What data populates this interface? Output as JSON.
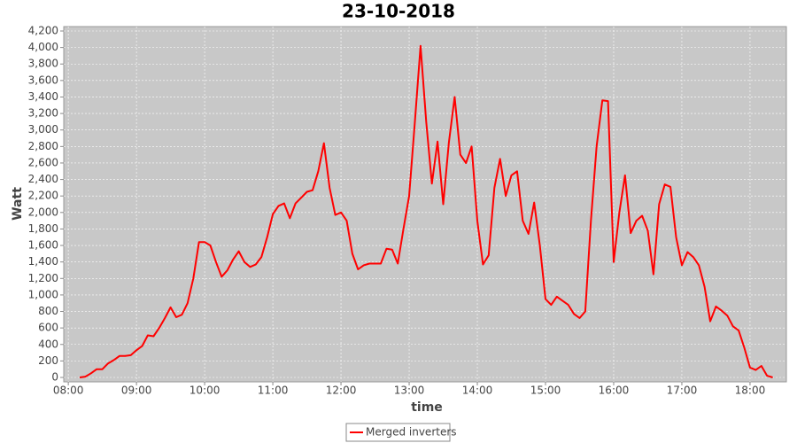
{
  "chart_data": {
    "type": "line",
    "title": "23-10-2018",
    "x_label": "time",
    "y_label": "Watt",
    "x": [
      "08:10",
      "08:15",
      "08:20",
      "08:25",
      "08:30",
      "08:35",
      "08:40",
      "08:45",
      "08:50",
      "08:55",
      "09:00",
      "09:05",
      "09:10",
      "09:15",
      "09:20",
      "09:25",
      "09:30",
      "09:35",
      "09:40",
      "09:45",
      "09:50",
      "09:55",
      "10:00",
      "10:05",
      "10:10",
      "10:15",
      "10:20",
      "10:25",
      "10:30",
      "10:35",
      "10:40",
      "10:45",
      "10:50",
      "10:55",
      "11:00",
      "11:05",
      "11:10",
      "11:15",
      "11:20",
      "11:25",
      "11:30",
      "11:35",
      "11:40",
      "11:45",
      "11:50",
      "11:55",
      "12:00",
      "12:05",
      "12:10",
      "12:15",
      "12:20",
      "12:25",
      "12:30",
      "12:35",
      "12:40",
      "12:45",
      "12:50",
      "12:55",
      "13:00",
      "13:05",
      "13:10",
      "13:15",
      "13:20",
      "13:25",
      "13:30",
      "13:35",
      "13:40",
      "13:45",
      "13:50",
      "13:55",
      "14:00",
      "14:05",
      "14:10",
      "14:15",
      "14:20",
      "14:25",
      "14:30",
      "14:35",
      "14:40",
      "14:45",
      "14:50",
      "14:55",
      "15:00",
      "15:05",
      "15:10",
      "15:15",
      "15:20",
      "15:25",
      "15:30",
      "15:35",
      "15:40",
      "15:45",
      "15:50",
      "15:55",
      "16:00",
      "16:05",
      "16:10",
      "16:15",
      "16:20",
      "16:25",
      "16:30",
      "16:35",
      "16:40",
      "16:45",
      "16:50",
      "16:55",
      "17:00",
      "17:05",
      "17:10",
      "17:15",
      "17:20",
      "17:25",
      "17:30",
      "17:35",
      "17:40",
      "17:45",
      "17:50",
      "17:55",
      "18:00",
      "18:05",
      "18:10",
      "18:15",
      "18:20"
    ],
    "series": [
      {
        "name": "Merged inverters",
        "color": "#ff0000",
        "values": [
          0,
          10,
          50,
          100,
          100,
          170,
          210,
          260,
          260,
          270,
          330,
          380,
          510,
          500,
          600,
          720,
          850,
          730,
          760,
          900,
          1200,
          1640,
          1640,
          1600,
          1400,
          1220,
          1300,
          1430,
          1530,
          1400,
          1340,
          1370,
          1460,
          1700,
          1980,
          2080,
          2110,
          1930,
          2110,
          2180,
          2250,
          2270,
          2500,
          2840,
          2300,
          1970,
          2000,
          1900,
          1500,
          1310,
          1360,
          1380,
          1380,
          1380,
          1560,
          1550,
          1380,
          1800,
          2200,
          3100,
          4020,
          3100,
          2350,
          2860,
          2100,
          2850,
          3400,
          2700,
          2600,
          2800,
          1900,
          1370,
          1480,
          2300,
          2650,
          2200,
          2450,
          2500,
          1900,
          1740,
          2120,
          1600,
          950,
          880,
          980,
          930,
          880,
          770,
          720,
          800,
          1900,
          2800,
          3360,
          3350,
          1400,
          2000,
          2450,
          1750,
          1900,
          1960,
          1780,
          1250,
          2100,
          2340,
          2310,
          1700,
          1360,
          1520,
          1460,
          1360,
          1100,
          680,
          860,
          810,
          750,
          620,
          570,
          360,
          120,
          90,
          140,
          20,
          0
        ]
      }
    ],
    "xlim": [
      "07:56",
      "18:32"
    ],
    "xticks": [
      "08:00",
      "09:00",
      "10:00",
      "11:00",
      "12:00",
      "13:00",
      "14:00",
      "15:00",
      "16:00",
      "17:00",
      "18:00"
    ],
    "ylim": [
      0,
      4200
    ],
    "yticks": [
      0,
      200,
      400,
      600,
      800,
      {
        "value": 1000,
        "label": "1,000"
      },
      {
        "value": 1200,
        "label": "1,200"
      },
      {
        "value": 1400,
        "label": "1,400"
      },
      {
        "value": 1600,
        "label": "1,600"
      },
      {
        "value": 1800,
        "label": "1,800"
      },
      {
        "value": 2000,
        "label": "2,000"
      },
      {
        "value": 2200,
        "label": "2,200"
      },
      {
        "value": 2400,
        "label": "2,400"
      },
      {
        "value": 2600,
        "label": "2,600"
      },
      {
        "value": 2800,
        "label": "2,800"
      },
      {
        "value": 3000,
        "label": "3,000"
      },
      {
        "value": 3200,
        "label": "3,200"
      },
      {
        "value": 3400,
        "label": "3,400"
      },
      {
        "value": 3600,
        "label": "3,600"
      },
      {
        "value": 3800,
        "label": "3,800"
      },
      {
        "value": 4000,
        "label": "4,000"
      },
      {
        "value": 4200,
        "label": "4,200"
      }
    ],
    "grid": true,
    "legend": "bottom"
  }
}
